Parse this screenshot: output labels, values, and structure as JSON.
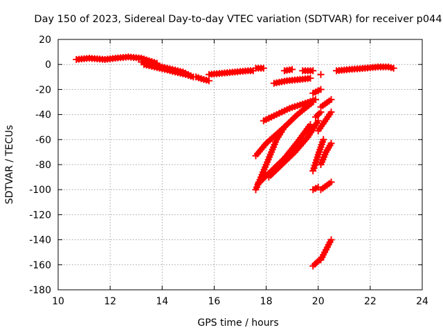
{
  "chart_data": {
    "type": "scatter",
    "title": "Day 150 of 2023, Sidereal Day-to-day VTEC variation (SDTVAR) for receiver p044",
    "xlabel": "GPS time / hours",
    "ylabel": "SDTVAR / TECUs",
    "xlim": [
      10,
      24
    ],
    "ylim": [
      -180,
      20
    ],
    "xticks": [
      10,
      12,
      14,
      16,
      18,
      20,
      22,
      24
    ],
    "yticks": [
      -180,
      -160,
      -140,
      -120,
      -100,
      -80,
      -60,
      -40,
      -20,
      0,
      20
    ],
    "grid": true,
    "marker": "plus",
    "color": "#ff0000",
    "series": [
      {
        "name": "arc-main-1",
        "x": [
          10.7,
          11.2,
          11.8,
          12.2,
          12.7,
          13.2,
          13.5,
          13.8
        ],
        "y": [
          4,
          5,
          4,
          5,
          6,
          5,
          3,
          1
        ]
      },
      {
        "name": "arc-main-2",
        "x": [
          13.2,
          13.6,
          14.0,
          14.4,
          14.8,
          15.1
        ],
        "y": [
          2,
          0,
          -2,
          -4,
          -6,
          -9
        ]
      },
      {
        "name": "arc-main-3",
        "x": [
          13.3,
          13.7,
          14.1,
          14.5,
          14.9,
          15.2
        ],
        "y": [
          0,
          -2,
          -4,
          -6,
          -8,
          -10
        ]
      },
      {
        "name": "arc-dip",
        "x": [
          15.3,
          15.6,
          15.8
        ],
        "y": [
          -10,
          -12,
          -13
        ]
      },
      {
        "name": "arc-mid",
        "x": [
          15.8,
          16.3,
          16.8,
          17.3,
          17.5
        ],
        "y": [
          -8,
          -7,
          -6,
          -5,
          -5
        ]
      },
      {
        "name": "arc-short-a",
        "x": [
          17.6,
          17.9
        ],
        "y": [
          -3,
          -3
        ]
      },
      {
        "name": "arc-short-b",
        "x": [
          18.3,
          18.8,
          19.3,
          19.7
        ],
        "y": [
          -15,
          -13,
          -12,
          -11
        ]
      },
      {
        "name": "arc-short-c",
        "x": [
          18.7,
          19.0
        ],
        "y": [
          -5,
          -4
        ]
      },
      {
        "name": "arc-short-d",
        "x": [
          19.4,
          19.8
        ],
        "y": [
          -5,
          -5
        ]
      },
      {
        "name": "arc-dot-1",
        "x": [
          20.1
        ],
        "y": [
          -8
        ]
      },
      {
        "name": "arc-right",
        "x": [
          20.7,
          21.2,
          21.8,
          22.3,
          22.7,
          22.9
        ],
        "y": [
          -5,
          -4,
          -3,
          -2,
          -2,
          -3
        ]
      },
      {
        "name": "arc-descend-1",
        "x": [
          17.6,
          18.0,
          18.4,
          18.7
        ],
        "y": [
          -100,
          -80,
          -60,
          -50
        ]
      },
      {
        "name": "arc-descend-2",
        "x": [
          17.6,
          18.0,
          18.6,
          19.2,
          19.8
        ],
        "y": [
          -73,
          -63,
          -52,
          -40,
          -30
        ]
      },
      {
        "name": "arc-descend-3",
        "x": [
          17.9,
          18.4,
          18.9,
          19.5,
          19.9
        ],
        "y": [
          -45,
          -40,
          -35,
          -31,
          -28
        ]
      },
      {
        "name": "arc-descend-4",
        "x": [
          17.7,
          18.2,
          18.7,
          19.2,
          19.7
        ],
        "y": [
          -95,
          -85,
          -75,
          -62,
          -48
        ]
      },
      {
        "name": "arc-descend-5",
        "x": [
          18.1,
          18.6,
          19.1,
          19.6,
          20.0
        ],
        "y": [
          -90,
          -80,
          -70,
          -58,
          -45
        ]
      },
      {
        "name": "arc-r1",
        "x": [
          19.8,
          20.1
        ],
        "y": [
          -23,
          -20
        ]
      },
      {
        "name": "arc-r2",
        "x": [
          20.1,
          20.5
        ],
        "y": [
          -34,
          -28
        ]
      },
      {
        "name": "arc-r3",
        "x": [
          19.9,
          20.1
        ],
        "y": [
          -42,
          -38
        ]
      },
      {
        "name": "arc-r4",
        "x": [
          20.0,
          20.5
        ],
        "y": [
          -53,
          -38
        ]
      },
      {
        "name": "arc-r5",
        "x": [
          19.8,
          20.0,
          20.2
        ],
        "y": [
          -85,
          -72,
          -60
        ]
      },
      {
        "name": "arc-r6",
        "x": [
          20.1,
          20.3,
          20.5
        ],
        "y": [
          -80,
          -70,
          -63
        ]
      },
      {
        "name": "arc-r7",
        "x": [
          19.8,
          20.0
        ],
        "y": [
          -100,
          -98
        ]
      },
      {
        "name": "arc-r8",
        "x": [
          20.1,
          20.5
        ],
        "y": [
          -100,
          -94
        ]
      },
      {
        "name": "arc-r9",
        "x": [
          19.8,
          20.1
        ],
        "y": [
          -161,
          -155
        ]
      },
      {
        "name": "arc-r10",
        "x": [
          20.1,
          20.5
        ],
        "y": [
          -156,
          -140
        ]
      }
    ]
  }
}
